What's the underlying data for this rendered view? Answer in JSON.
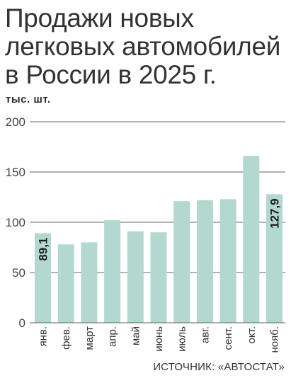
{
  "title_lines": [
    "Продажи новых",
    "легковых автомобилей",
    "в России в 2025 г."
  ],
  "unit": "тыс. шт.",
  "source": "ИСТОЧНИК: «АВТОСТАТ»",
  "colors": {
    "bar": "#b2d8cf",
    "grid": "#666666",
    "text": "#2b2b2b"
  },
  "chart_data": {
    "type": "bar",
    "title": "Продажи новых легковых автомобилей в России в 2025 г.",
    "ylabel": "тыс. шт.",
    "xlabel": "",
    "categories": [
      "янв.",
      "фев.",
      "март",
      "апр.",
      "май",
      "июнь",
      "июль",
      "авг.",
      "сент.",
      "окт.",
      "нояб."
    ],
    "values": [
      89.1,
      78,
      80,
      102,
      91,
      90,
      121,
      122,
      123,
      166,
      127.9
    ],
    "data_labels": [
      {
        "index": 0,
        "text": "89,1"
      },
      {
        "index": 10,
        "text": "127,9"
      }
    ],
    "yticks": [
      "0",
      "50",
      "100",
      "150",
      "200"
    ],
    "ylim": [
      0,
      200
    ],
    "grid": true,
    "legend": "none"
  }
}
